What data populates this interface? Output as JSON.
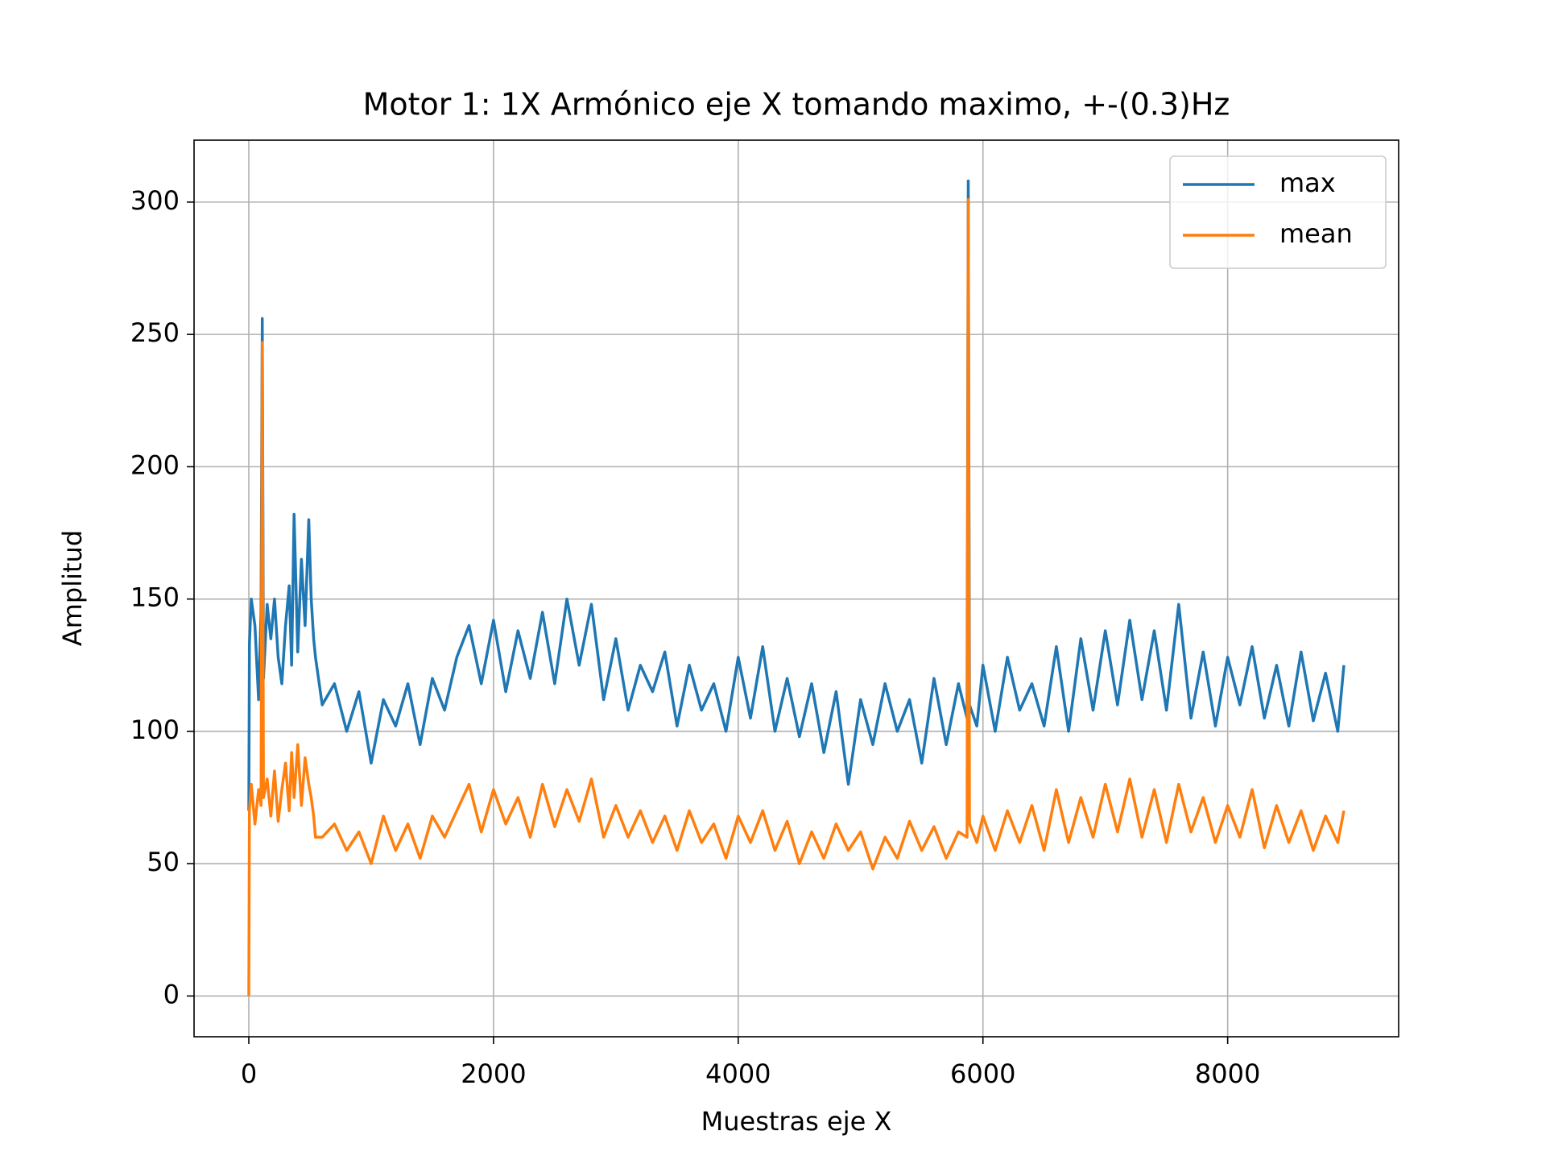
{
  "chart_data": {
    "type": "line",
    "title": "Motor 1: 1X Armónico eje X tomando maximo, +-(0.3)Hz",
    "xlabel": "Muestras eje X",
    "ylabel": "Amplitud",
    "x": [
      0,
      5,
      20,
      50,
      80,
      100,
      110,
      120,
      150,
      180,
      210,
      240,
      270,
      300,
      330,
      350,
      370,
      400,
      430,
      460,
      490,
      510,
      530,
      545,
      600,
      700,
      800,
      900,
      1000,
      1100,
      1200,
      1300,
      1400,
      1500,
      1600,
      1700,
      1800,
      1900,
      2000,
      2100,
      2200,
      2300,
      2400,
      2500,
      2600,
      2700,
      2800,
      2900,
      3000,
      3100,
      3200,
      3300,
      3400,
      3500,
      3600,
      3700,
      3800,
      3900,
      4000,
      4100,
      4200,
      4300,
      4400,
      4500,
      4600,
      4700,
      4800,
      4900,
      5000,
      5100,
      5200,
      5300,
      5400,
      5500,
      5600,
      5700,
      5800,
      5870,
      5880,
      5890,
      5950,
      6000,
      6100,
      6200,
      6300,
      6400,
      6500,
      6600,
      6700,
      6800,
      6900,
      7000,
      7100,
      7200,
      7300,
      7400,
      7500,
      7600,
      7700,
      7800,
      7900,
      8000,
      8100,
      8200,
      8300,
      8400,
      8500,
      8600,
      8700,
      8800,
      8900,
      8950
    ],
    "series": [
      {
        "name": "max",
        "color": "#1f77b4",
        "values": [
          70,
          133,
          150,
          140,
          112,
          145,
          256,
          120,
          148,
          135,
          150,
          128,
          118,
          140,
          155,
          125,
          182,
          130,
          165,
          140,
          180,
          150,
          135,
          128,
          110,
          118,
          100,
          115,
          88,
          112,
          102,
          118,
          95,
          120,
          108,
          128,
          140,
          118,
          142,
          115,
          138,
          120,
          145,
          118,
          150,
          125,
          148,
          112,
          135,
          108,
          125,
          115,
          130,
          102,
          125,
          108,
          118,
          100,
          128,
          105,
          132,
          100,
          120,
          98,
          118,
          92,
          115,
          80,
          112,
          95,
          118,
          100,
          112,
          88,
          120,
          95,
          118,
          105,
          308,
          110,
          102,
          125,
          100,
          128,
          108,
          118,
          102,
          132,
          100,
          135,
          108,
          138,
          110,
          142,
          112,
          138,
          108,
          148,
          105,
          130,
          102,
          128,
          110,
          132,
          105,
          125,
          102,
          130,
          104,
          122,
          100,
          125
        ]
      },
      {
        "name": "mean",
        "color": "#ff7f0e",
        "values": [
          0,
          70,
          80,
          65,
          78,
          72,
          247,
          75,
          82,
          68,
          85,
          66,
          78,
          88,
          70,
          92,
          75,
          95,
          72,
          90,
          80,
          75,
          68,
          60,
          60,
          65,
          55,
          62,
          50,
          68,
          55,
          65,
          52,
          68,
          60,
          70,
          80,
          62,
          78,
          65,
          75,
          60,
          80,
          64,
          78,
          66,
          82,
          60,
          72,
          60,
          70,
          58,
          68,
          55,
          70,
          58,
          65,
          52,
          68,
          58,
          70,
          55,
          66,
          50,
          62,
          52,
          65,
          55,
          62,
          48,
          60,
          52,
          66,
          55,
          64,
          52,
          62,
          60,
          301,
          65,
          58,
          68,
          55,
          70,
          58,
          72,
          55,
          78,
          58,
          75,
          60,
          80,
          62,
          82,
          60,
          78,
          58,
          80,
          62,
          75,
          58,
          72,
          60,
          78,
          56,
          72,
          58,
          70,
          55,
          68,
          58,
          70
        ]
      }
    ],
    "xlim": [
      -447.5,
      9397.5
    ],
    "xticks": [
      0,
      2000,
      4000,
      6000,
      8000
    ],
    "ylim": [
      -15.4,
      323.4
    ],
    "yticks": [
      0,
      50,
      100,
      150,
      200,
      250,
      300
    ],
    "grid": true,
    "legend": "upper right"
  }
}
